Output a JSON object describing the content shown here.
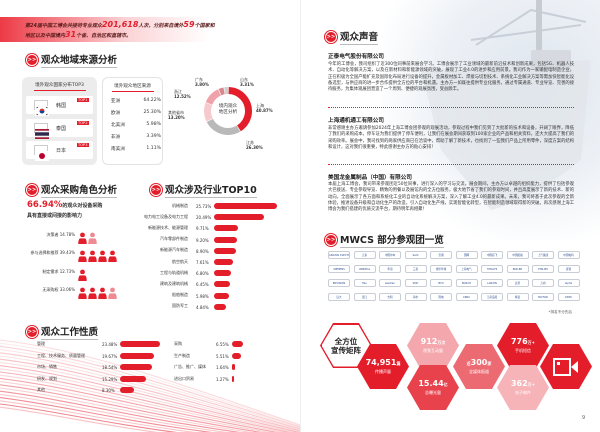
{
  "left_page": {
    "intro": {
      "t1": "第24届中国工博会共接待专业观众",
      "n1": "201,618",
      "t2": "人次，分别来自境外",
      "n2": "59",
      "t3": "个国家和",
      "t4": "地区以及中国境内",
      "n3": "31",
      "t5": "个省、自治区和直辖市。"
    },
    "region": {
      "title": "观众地域来源分析",
      "country_card": {
        "title": "境外观众国家分布TOP3",
        "items": [
          {
            "country": "韩国",
            "rank": "TOP1",
            "flag": "korea-flag-icon"
          },
          {
            "country": "泰国",
            "rank": "TOP2",
            "flag": "thailand-flag-icon"
          },
          {
            "country": "日本",
            "rank": "TOP3",
            "flag": "japan-flag-icon"
          }
        ]
      },
      "overseas_card": {
        "title": "境外观众地区来源",
        "items": [
          {
            "name": "亚洲",
            "value": "64.22%"
          },
          {
            "name": "欧洲",
            "value": "25.30%"
          },
          {
            "name": "北美洲",
            "value": "5.98%"
          },
          {
            "name": "非洲",
            "value": "3.39%"
          },
          {
            "name": "南美洲",
            "value": "1.11%"
          }
        ]
      },
      "domestic_donut": {
        "center_label_1": "境内观众",
        "center_label_2": "地区分析",
        "slices": [
          {
            "name": "上海",
            "value": 40.87,
            "label": "40.87%",
            "color": "#e31e2a"
          },
          {
            "name": "江苏",
            "value": 26.3,
            "label": "26.30%",
            "color": "#b9b9b9"
          },
          {
            "name": "其他省市",
            "value": 13.2,
            "label": "13.20%",
            "color": "#f6c9cd"
          },
          {
            "name": "浙江",
            "value": 12.52,
            "label": "12.52%",
            "color": "#eea3aa"
          },
          {
            "name": "广东",
            "value": 3.8,
            "label": "3.80%",
            "color": "#d9868e"
          },
          {
            "name": "山东",
            "value": 3.31,
            "label": "3.31%",
            "color": "#cfcfcf"
          }
        ]
      }
    },
    "role": {
      "title": "观众采购角色分析",
      "headline_value": "66.94%",
      "headline_text_1": "的观众对设备采购",
      "headline_text_2": "具有直接或间接的影响力",
      "items": [
        {
          "label": "决策者 14.78%",
          "value": 14.78,
          "icons_full": 1,
          "icons_light": 1
        },
        {
          "label": "参与选择和推荐 39.43%",
          "value": 39.43,
          "icons_full": 4,
          "icons_light": 0
        },
        {
          "label": "制定需求 12.73%",
          "value": 12.73,
          "icons_full": 1,
          "icons_light": 0
        },
        {
          "label": "无采购权 33.06%",
          "value": 33.06,
          "icons_full": 3,
          "icons_light": 1
        }
      ]
    },
    "industry": {
      "title": "观众涉及行业TOP10",
      "items": [
        {
          "label": "机械制造",
          "value": 25.73,
          "text": "25.73%"
        },
        {
          "label": "电力电工设备及电力工程",
          "value": 20.49,
          "text": "20.49%"
        },
        {
          "label": "新能源技术、能源管理",
          "value": 9.71,
          "text": "9.71%"
        },
        {
          "label": "汽车零部件制造",
          "value": 9.2,
          "text": "9.20%"
        },
        {
          "label": "新能源汽车制造",
          "value": 8.9,
          "text": "8.90%"
        },
        {
          "label": "航空航天",
          "value": 7.61,
          "text": "7.61%"
        },
        {
          "label": "工程与轨道机械",
          "value": 6.8,
          "text": "6.80%"
        },
        {
          "label": "建筑及建筑机械",
          "value": 6.45,
          "text": "6.45%"
        },
        {
          "label": "船舶制造",
          "value": 5.98,
          "text": "5.98%"
        },
        {
          "label": "国防军工",
          "value": 4.84,
          "text": "4.84%"
        }
      ]
    },
    "work": {
      "title": "观众工作性质",
      "left": [
        {
          "label": "管理",
          "value": 23.48,
          "text": "23.48%"
        },
        {
          "label": "工程、技术服务、质量管理",
          "value": 19.67,
          "text": "19.67%"
        },
        {
          "label": "市场、销售",
          "value": 18.54,
          "text": "18.54%"
        },
        {
          "label": "研发、规划",
          "value": 15.29,
          "text": "15.29%"
        },
        {
          "label": "其他",
          "value": 8.3,
          "text": "8.30%"
        }
      ],
      "right": [
        {
          "label": "采购",
          "value": 6.55,
          "text": "6.55%"
        },
        {
          "label": "生产制造",
          "value": 5.51,
          "text": "5.51%"
        },
        {
          "label": "广告、推广、媒体",
          "value": 1.64,
          "text": "1.64%"
        },
        {
          "label": "进出口贸易",
          "value": 1.27,
          "text": "1.27%"
        }
      ]
    }
  },
  "right_page": {
    "voices": {
      "title": "观众声音",
      "items": [
        {
          "company": "正泰电气股份有限公司",
          "text": "今年的工博会，我司组织了近300位同事前来展会学习。工博会展示了工业领域的最新前沿技术和创新成果，包括5G、机器人技术、自动化等解决方案，以及在新材料和新能源领域的突破，展现了工业4.0的进步和应用前景。我司作为一家输配电制造企业，正在积极为全国产能扩充及国际化布局进行设备的提升，金属板材加工、焊接与切割技术、系统化工业解决方案等需加快智能化设备选型，与供应商的进一步合作提供全方位的平台和机遇。主办方一如既往提供专业化服务，通过专属通道、专业导览、完善的接待服务，为集体观展团营造了一个周到、便捷的观展氛围，受益颇丰。"
        },
        {
          "company": "上海通机通工有限公司",
          "text": "非常感谢主办方邀请参加2024年上海工博会团参观的观展活动，参观过程中我们见到了大批新的技术和设备，开阔了眼界，降低了我们的采购成本。停车证为我们提供了停车便利，让我们在展会期间获取到100家企业的产品和相关资料，还大大提高了我们的采购效率。展会中，我司找到的两家供应商已在洽谈中，帮助了解了新技术，也找到了一些我们产品上所用零件，深度方案的结构和设计，这对我们很重要，特此感谢主办方的贴心安排！"
        },
        {
          "company": "美国龙金属制品（中国）有限公司",
          "text": "本届上海工博会，我司带来参观团近50位同事，进行深入的学习与交流。展会期间，主办方以卓越的组织能力，提供了包括参观大巴接送、专业参观导览、精致的用餐以及展馆内的全方位服务，极大地节省了我们的参观时间，并且高度展示了新的技术、新的动向，全面展示了各方面和系统化工业的自动化系统解决方案，深入了解工业4.0的最新成果。未来，我司将基于此次参观的全新体验，推进设备升级和自动化生产的改造，引入自动化生产线，实现智能化转型，在智能制造领域取得新的突破。再次感谢上海工博会为我们搭建的优质交流平台，期待明年再相聚！"
        }
      ]
    },
    "mwcs": {
      "title": "MWCS 部分参观团一览",
      "logos": [
        "SHANGHAI ELECTRIC",
        "正泰",
        "中国中车",
        "SAIC",
        "宝钢",
        "国网",
        "中国商飞",
        "中国船舶",
        "上汽集团",
        "中国电科",
        "SIEMENS",
        "UNIDEAL",
        "华谊",
        "三菱",
        "博世华域",
        "上海电气",
        "HITACHI",
        "BOILER",
        "PHILIPS",
        "延锋",
        "ENVISION",
        "flex",
        "weidian",
        "SMC",
        "BYD",
        "BOSCH",
        "LANXIN",
        "远景",
        "万向",
        "alpha",
        "远大",
        "锦江",
        "吉利",
        "海尔",
        "国电",
        "CRRC",
        "江南造船",
        "特变",
        "MOTOR",
        "CIMIC"
      ],
      "footnote": "*排名不分先后"
    },
    "matrix": {
      "title_1": "全方位",
      "title_2": "宣传矩阵",
      "items": [
        {
          "value": "74,951",
          "unit": "篇",
          "caption": "传播声量"
        },
        {
          "value": "912",
          "unit": "万次",
          "caption": "视频互动量"
        },
        {
          "value": "15.44",
          "unit": "亿",
          "caption": "总曝光量"
        },
        {
          "value": "300",
          "prefix": "近",
          "unit": "家",
          "caption": "全媒体报道"
        },
        {
          "value": "776",
          "unit": "万+",
          "caption": "手机短信"
        },
        {
          "value": "362",
          "unit": "万+",
          "caption": "电子邮件"
        }
      ],
      "video_icon": "video-camera-icon"
    },
    "page_number": "9"
  },
  "colors": {
    "brand_red": "#e31e2a",
    "light_pink": "#f4a7ad",
    "gray": "#b9b9b9"
  }
}
